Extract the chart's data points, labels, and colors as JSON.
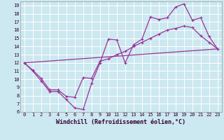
{
  "xlabel": "Windchill (Refroidissement éolien,°C)",
  "background_color": "#cce8f0",
  "grid_color": "#ffffff",
  "line_color": "#993399",
  "xlim": [
    -0.5,
    23.5
  ],
  "ylim": [
    6,
    19.5
  ],
  "xticks": [
    0,
    1,
    2,
    3,
    4,
    5,
    6,
    7,
    8,
    9,
    10,
    11,
    12,
    13,
    14,
    15,
    16,
    17,
    18,
    19,
    20,
    21,
    22,
    23
  ],
  "yticks": [
    6,
    7,
    8,
    9,
    10,
    11,
    12,
    13,
    14,
    15,
    16,
    17,
    18,
    19
  ],
  "line1_x": [
    0,
    1,
    2,
    3,
    4,
    5,
    6,
    7,
    8,
    9,
    10,
    11,
    12,
    13,
    14,
    15,
    16,
    17,
    18,
    19,
    20,
    21,
    22,
    23
  ],
  "line1_y": [
    12,
    11,
    9.8,
    8.5,
    8.5,
    7.5,
    6.5,
    6.3,
    9.5,
    12,
    14.9,
    14.8,
    12,
    14.2,
    14.9,
    17.6,
    17.3,
    17.5,
    18.8,
    19.2,
    17.2,
    17.5,
    15.2,
    13.7
  ],
  "line2_x": [
    0,
    1,
    2,
    3,
    4,
    5,
    6,
    7,
    8,
    9,
    10,
    11,
    12,
    13,
    14,
    15,
    16,
    17,
    18,
    19,
    20,
    21,
    22,
    23
  ],
  "line2_y": [
    12,
    11.1,
    10.1,
    8.7,
    8.7,
    7.9,
    7.8,
    10.2,
    10.1,
    12.2,
    12.5,
    13.0,
    13.4,
    14.0,
    14.5,
    15.0,
    15.5,
    16.0,
    16.2,
    16.5,
    16.3,
    15.3,
    14.5,
    13.7
  ],
  "line3_x": [
    0,
    23
  ],
  "line3_y": [
    12,
    13.7
  ],
  "tick_fontsize": 5,
  "xlabel_fontsize": 6
}
